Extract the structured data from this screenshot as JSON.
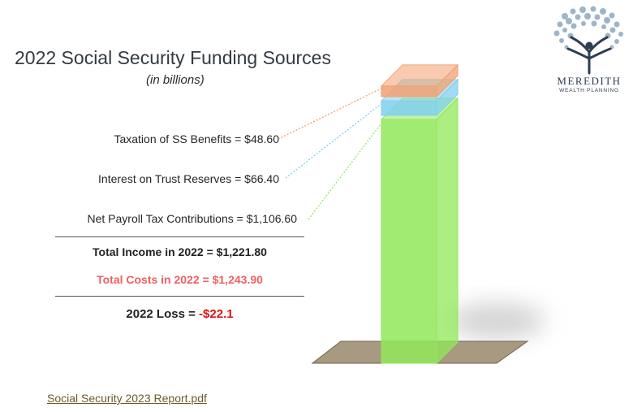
{
  "slide": {
    "title": "2022 Social Security Funding Sources",
    "subtitle": "(in billions)"
  },
  "labels": {
    "taxation": "Taxation of SS Benefits = $48.60",
    "interest": "Interest on Trust Reserves = $66.40",
    "payroll": "Net Payroll Tax Contributions = $1,106.60"
  },
  "summary": {
    "income": "Total Income in 2022 = $1,221.80",
    "costs": "Total Costs in 2022 = $1,243.90",
    "loss_label": "2022 Loss = ",
    "loss_value": "-$22.1"
  },
  "link_text": "Social Security 2023 Report.pdf",
  "logo": {
    "name": "MEREDITH",
    "tagline": "WEALTH PLANNING"
  },
  "colors": {
    "payroll": "#92e85a",
    "interest": "#7fd0ee",
    "taxation": "#f2a070",
    "costs_text": "#f06060",
    "loss_text": "#e01010",
    "floor": "#a89a80",
    "logo_navy": "#2c3e52",
    "logo_leaves": "#9fb4c8"
  },
  "chart_data": {
    "type": "bar",
    "stacked": true,
    "categories": [
      "2022"
    ],
    "series": [
      {
        "name": "Net Payroll Tax Contributions",
        "values": [
          1106.6
        ]
      },
      {
        "name": "Interest on Trust Reserves",
        "values": [
          66.4
        ]
      },
      {
        "name": "Taxation of SS Benefits",
        "values": [
          48.6
        ]
      }
    ],
    "title": "2022 Social Security Funding Sources",
    "subtitle": "(in billions)",
    "total_income": 1221.8,
    "total_costs": 1243.9,
    "loss": -22.1
  }
}
